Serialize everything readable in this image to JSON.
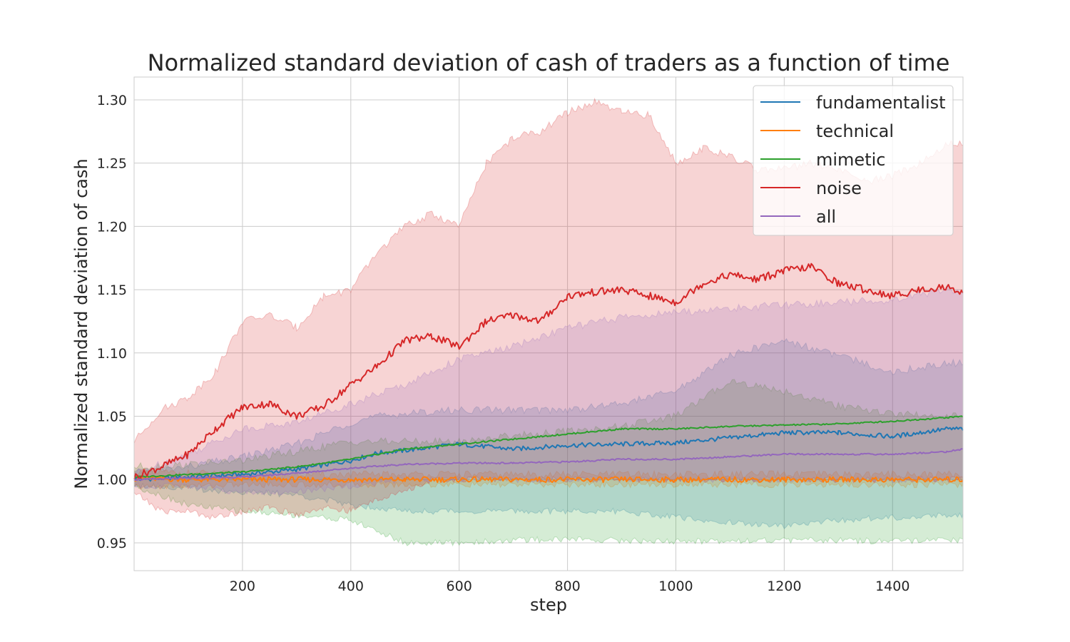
{
  "chart_data": {
    "type": "line",
    "title": "Normalized standard deviation of cash of traders as a function of time",
    "xlabel": "step",
    "ylabel": "Normalized standard deviation of cash",
    "xlim": [
      0,
      1530
    ],
    "ylim": [
      0.928,
      1.318
    ],
    "xticks": [
      200,
      400,
      600,
      800,
      1000,
      1200,
      1400
    ],
    "yticks": [
      0.95,
      1.0,
      1.05,
      1.1,
      1.15,
      1.2,
      1.25,
      1.3
    ],
    "ytick_labels": [
      "0.95",
      "1.00",
      "1.05",
      "1.10",
      "1.15",
      "1.20",
      "1.25",
      "1.30"
    ],
    "grid": true,
    "legend_position": "top-right",
    "series": [
      {
        "name": "fundamentalist",
        "color": "#1f77b4",
        "x": [
          0,
          100,
          200,
          300,
          400,
          450,
          500,
          600,
          700,
          800,
          900,
          1000,
          1100,
          1200,
          1300,
          1400,
          1500,
          1530
        ],
        "y": [
          1.0,
          1.002,
          1.004,
          1.008,
          1.015,
          1.021,
          1.023,
          1.028,
          1.024,
          1.027,
          1.028,
          1.029,
          1.033,
          1.037,
          1.037,
          1.034,
          1.04,
          1.04
        ],
        "band_lower": [
          0.996,
          0.993,
          0.99,
          0.988,
          0.98,
          0.978,
          0.975,
          0.975,
          0.975,
          0.975,
          0.975,
          0.97,
          0.966,
          0.963,
          0.968,
          0.97,
          0.972,
          0.972
        ],
        "band_upper": [
          1.005,
          1.01,
          1.018,
          1.028,
          1.045,
          1.05,
          1.052,
          1.055,
          1.055,
          1.055,
          1.06,
          1.07,
          1.098,
          1.11,
          1.098,
          1.085,
          1.092,
          1.092
        ]
      },
      {
        "name": "technical",
        "color": "#ff7f0e",
        "x": [
          0,
          100,
          200,
          300,
          400,
          500,
          600,
          700,
          800,
          900,
          1000,
          1100,
          1200,
          1300,
          1400,
          1500,
          1530
        ],
        "y": [
          1.001,
          1.0,
          1.0,
          1.0,
          1.0,
          1.0,
          1.0,
          1.0,
          1.0,
          1.0,
          1.0,
          1.0,
          1.0,
          1.0,
          1.0,
          1.0,
          1.0
        ],
        "band_lower": [
          0.994,
          0.995,
          0.996,
          0.996,
          0.996,
          0.996,
          0.996,
          0.996,
          0.996,
          0.996,
          0.996,
          0.996,
          0.996,
          0.996,
          0.996,
          0.996,
          0.996
        ],
        "band_upper": [
          1.006,
          1.005,
          1.004,
          1.004,
          1.004,
          1.004,
          1.004,
          1.004,
          1.004,
          1.004,
          1.004,
          1.004,
          1.004,
          1.004,
          1.004,
          1.004,
          1.004
        ]
      },
      {
        "name": "mimetic",
        "color": "#2ca02c",
        "x": [
          0,
          100,
          200,
          300,
          400,
          500,
          600,
          700,
          800,
          900,
          1000,
          1100,
          1200,
          1300,
          1400,
          1500,
          1530
        ],
        "y": [
          1.002,
          1.004,
          1.006,
          1.01,
          1.016,
          1.024,
          1.028,
          1.032,
          1.036,
          1.04,
          1.04,
          1.042,
          1.043,
          1.044,
          1.046,
          1.049,
          1.05
        ],
        "band_lower": [
          0.995,
          0.98,
          0.975,
          0.972,
          0.968,
          0.95,
          0.95,
          0.952,
          0.953,
          0.952,
          0.951,
          0.952,
          0.952,
          0.952,
          0.951,
          0.952,
          0.952
        ],
        "band_upper": [
          1.01,
          1.012,
          1.015,
          1.022,
          1.03,
          1.03,
          1.03,
          1.035,
          1.038,
          1.042,
          1.05,
          1.078,
          1.07,
          1.058,
          1.052,
          1.05,
          1.05
        ]
      },
      {
        "name": "noise",
        "color": "#d62728",
        "x": [
          0,
          50,
          100,
          150,
          200,
          250,
          300,
          350,
          400,
          450,
          500,
          550,
          600,
          650,
          700,
          750,
          800,
          850,
          900,
          950,
          1000,
          1050,
          1100,
          1150,
          1200,
          1250,
          1300,
          1350,
          1400,
          1450,
          1500,
          1530
        ],
        "y": [
          1.002,
          1.01,
          1.02,
          1.04,
          1.057,
          1.06,
          1.05,
          1.058,
          1.075,
          1.09,
          1.11,
          1.113,
          1.105,
          1.125,
          1.13,
          1.125,
          1.145,
          1.148,
          1.15,
          1.145,
          1.14,
          1.155,
          1.162,
          1.158,
          1.165,
          1.168,
          1.155,
          1.15,
          1.145,
          1.15,
          1.152,
          1.148
        ],
        "band_lower": [
          0.99,
          0.975,
          0.975,
          0.97,
          0.975,
          0.978,
          0.972,
          0.978,
          0.975,
          0.985,
          0.99,
          1.0,
          1.0,
          1.0,
          1.0,
          1.0,
          1.0,
          1.0,
          1.0,
          1.0,
          1.0,
          1.0,
          1.0,
          1.0,
          1.0,
          1.0,
          1.0,
          1.0,
          1.0,
          1.0,
          1.0,
          1.0
        ],
        "band_upper": [
          1.03,
          1.055,
          1.065,
          1.085,
          1.125,
          1.13,
          1.12,
          1.145,
          1.15,
          1.18,
          1.2,
          1.21,
          1.2,
          1.25,
          1.27,
          1.275,
          1.29,
          1.298,
          1.29,
          1.288,
          1.25,
          1.262,
          1.255,
          1.245,
          1.245,
          1.25,
          1.245,
          1.235,
          1.24,
          1.25,
          1.265,
          1.265
        ]
      },
      {
        "name": "all",
        "color": "#9467bd",
        "x": [
          0,
          100,
          200,
          300,
          400,
          500,
          600,
          700,
          800,
          900,
          1000,
          1100,
          1200,
          1300,
          1400,
          1500,
          1530
        ],
        "y": [
          1.0,
          1.001,
          1.002,
          1.005,
          1.009,
          1.012,
          1.013,
          1.013,
          1.014,
          1.016,
          1.016,
          1.018,
          1.02,
          1.02,
          1.02,
          1.022,
          1.024
        ],
        "band_lower": [
          0.995,
          0.995,
          0.99,
          0.99,
          0.995,
          1.0,
          1.0,
          1.0,
          1.0,
          1.0,
          1.0,
          1.0,
          1.0,
          1.0,
          1.0,
          1.0,
          1.0
        ],
        "band_upper": [
          1.005,
          1.02,
          1.04,
          1.045,
          1.06,
          1.075,
          1.095,
          1.105,
          1.12,
          1.128,
          1.132,
          1.135,
          1.138,
          1.14,
          1.142,
          1.15,
          1.15
        ]
      }
    ]
  }
}
